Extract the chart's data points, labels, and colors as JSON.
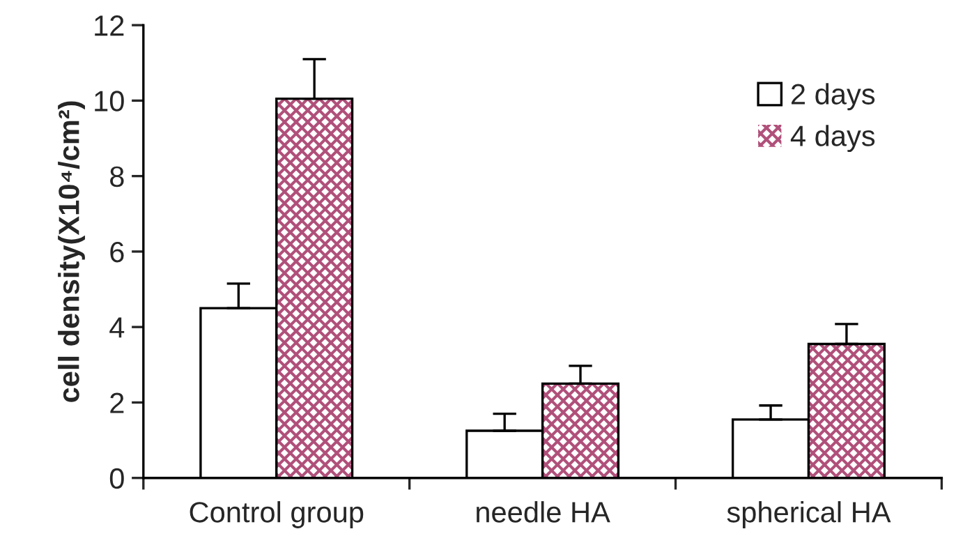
{
  "chart_data": {
    "type": "bar",
    "ylabel": "cell density(X10⁴/cm²)",
    "categories": [
      "Control group",
      "needle HA",
      "spherical HA"
    ],
    "series": [
      {
        "name": "2 days",
        "color": "#ffffff",
        "values": [
          4.5,
          1.25,
          1.55
        ],
        "errors": [
          [
            4.5,
            5.15
          ],
          [
            1.25,
            1.7
          ],
          [
            1.55,
            1.92
          ]
        ]
      },
      {
        "name": "4 days",
        "color": "#b0507a",
        "values": [
          10.05,
          2.5,
          3.55
        ],
        "errors": [
          [
            10.05,
            11.1
          ],
          [
            2.5,
            2.97
          ],
          [
            3.55,
            4.08
          ]
        ]
      }
    ],
    "ylim": [
      0,
      12
    ],
    "yticks": [
      0,
      2,
      4,
      6,
      8,
      10,
      12
    ],
    "grid": false,
    "legend": "top right"
  }
}
